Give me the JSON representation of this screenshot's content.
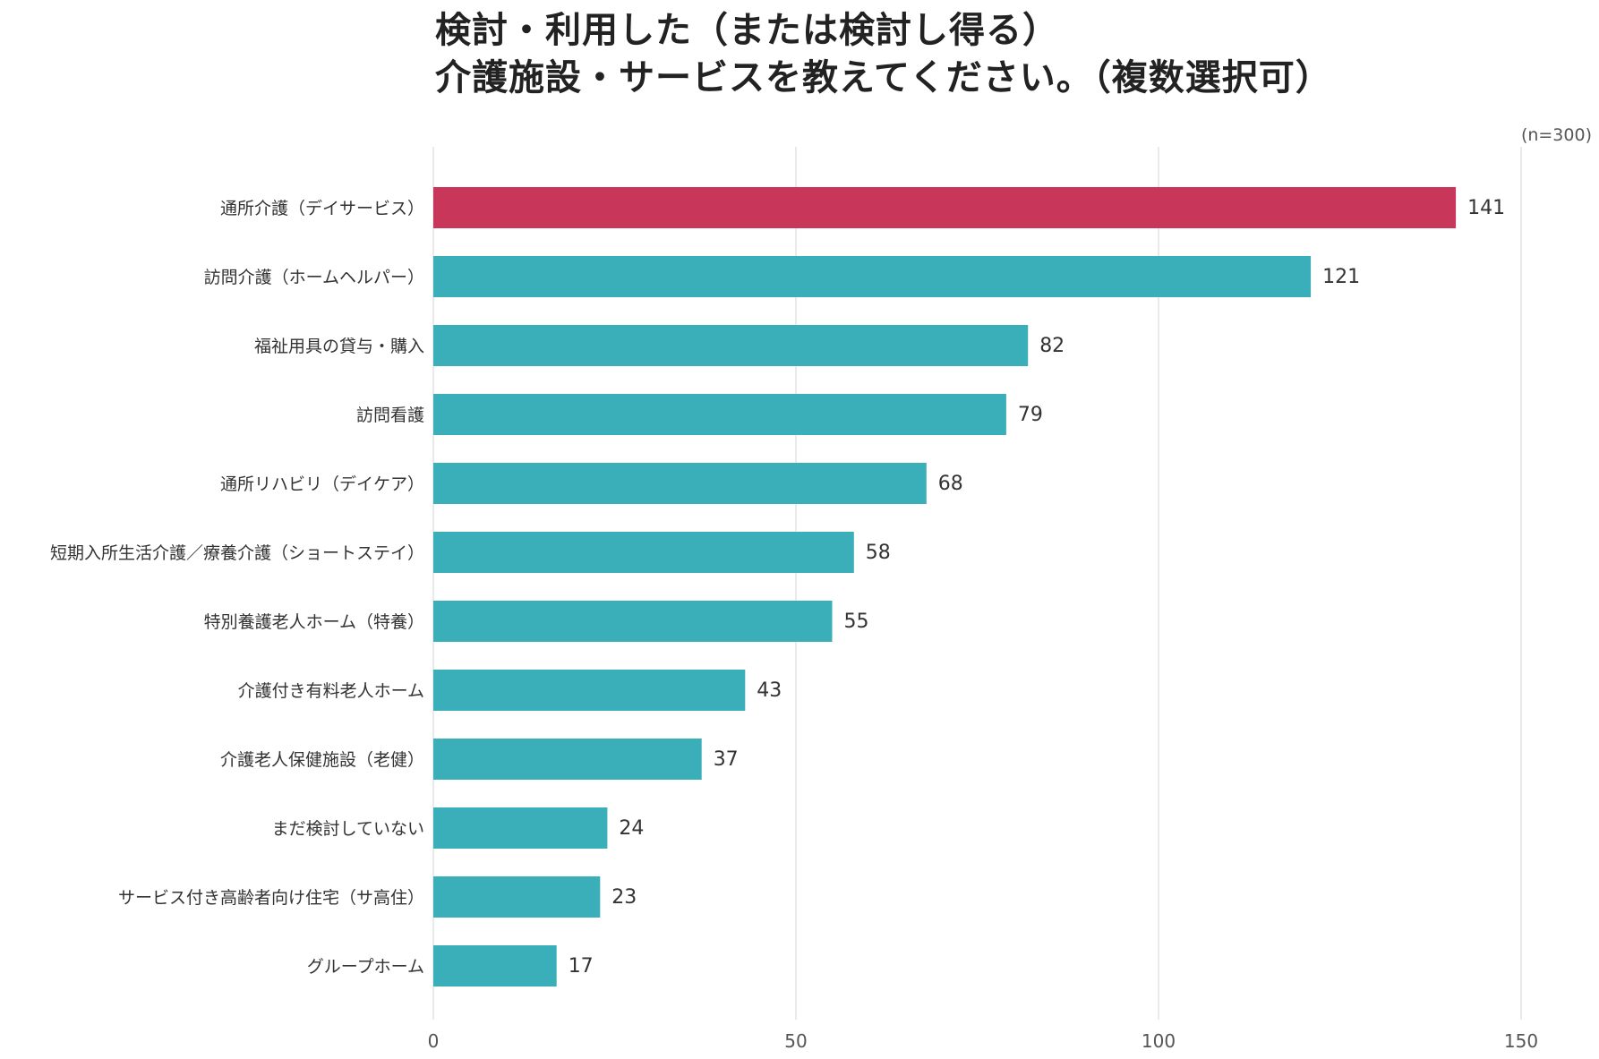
{
  "title_lines": [
    "検討・利用した（または検討し得る）",
    "介護施設・サービスを教えてください。（複数選択可）"
  ],
  "sample_note": "(n=300)",
  "colors": {
    "highlight": "#C8375A",
    "bar": "#3AAFB9",
    "grid": "#DDDDDD"
  },
  "chart_data": {
    "type": "bar",
    "orientation": "horizontal",
    "categories": [
      "通所介護（デイサービス）",
      "訪問介護（ホームヘルパー）",
      "福祉用具の貸与・購入",
      "訪問看護",
      "通所リハビリ（デイケア）",
      "短期入所生活介護／療養介護（ショートステイ）",
      "特別養護老人ホーム（特養）",
      "介護付き有料老人ホーム",
      "介護老人保健施設（老健）",
      "まだ検討していない",
      "サービス付き高齢者向け住宅（サ高住）",
      "グループホーム"
    ],
    "values": [
      141,
      121,
      82,
      79,
      68,
      58,
      55,
      43,
      37,
      24,
      23,
      17
    ],
    "highlight_index": 0,
    "xlim": [
      0,
      150
    ],
    "xticks": [
      0,
      50,
      100,
      150
    ],
    "grid": true,
    "title": "検討・利用した（または検討し得る）介護施設・サービスを教えてください。（複数選択可）"
  }
}
